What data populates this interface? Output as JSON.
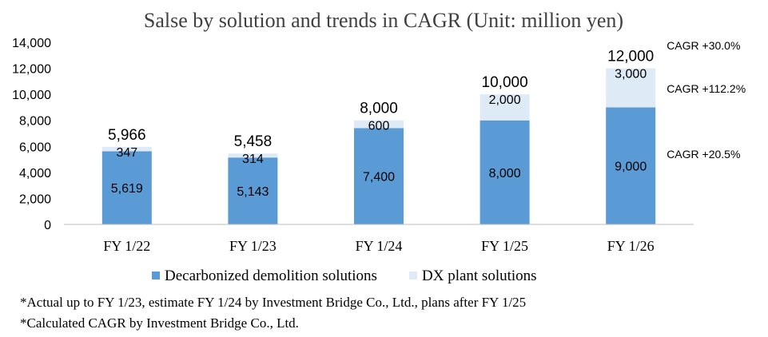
{
  "chart_data": {
    "type": "bar",
    "stacked": true,
    "title": "Salse by solution and trends in CAGR (Unit: million yen)",
    "categories": [
      "FY 1/22",
      "FY 1/23",
      "FY 1/24",
      "FY 1/25",
      "FY 1/26"
    ],
    "series": [
      {
        "name": "Decarbonized demolition solutions",
        "values": [
          5619,
          5143,
          7400,
          8000,
          9000
        ],
        "color": "#5b9bd5"
      },
      {
        "name": "DX plant solutions",
        "values": [
          347,
          314,
          600,
          2000,
          3000
        ],
        "color": "#deebf7"
      }
    ],
    "totals": [
      5966,
      5458,
      8000,
      10000,
      12000
    ],
    "ylim": [
      0,
      14000
    ],
    "yticks": [
      0,
      2000,
      4000,
      6000,
      8000,
      10000,
      12000,
      14000
    ],
    "grid": false,
    "legend_position": "bottom",
    "annotations": [
      "CAGR +30.0%",
      "CAGR +112.2%",
      "CAGR +20.5%"
    ]
  },
  "notes": [
    "*Actual up to FY 1/23, estimate FY 1/24 by Investment Bridge Co., Ltd., plans after FY 1/25",
    "*Calculated CAGR by Investment Bridge Co., Ltd."
  ]
}
